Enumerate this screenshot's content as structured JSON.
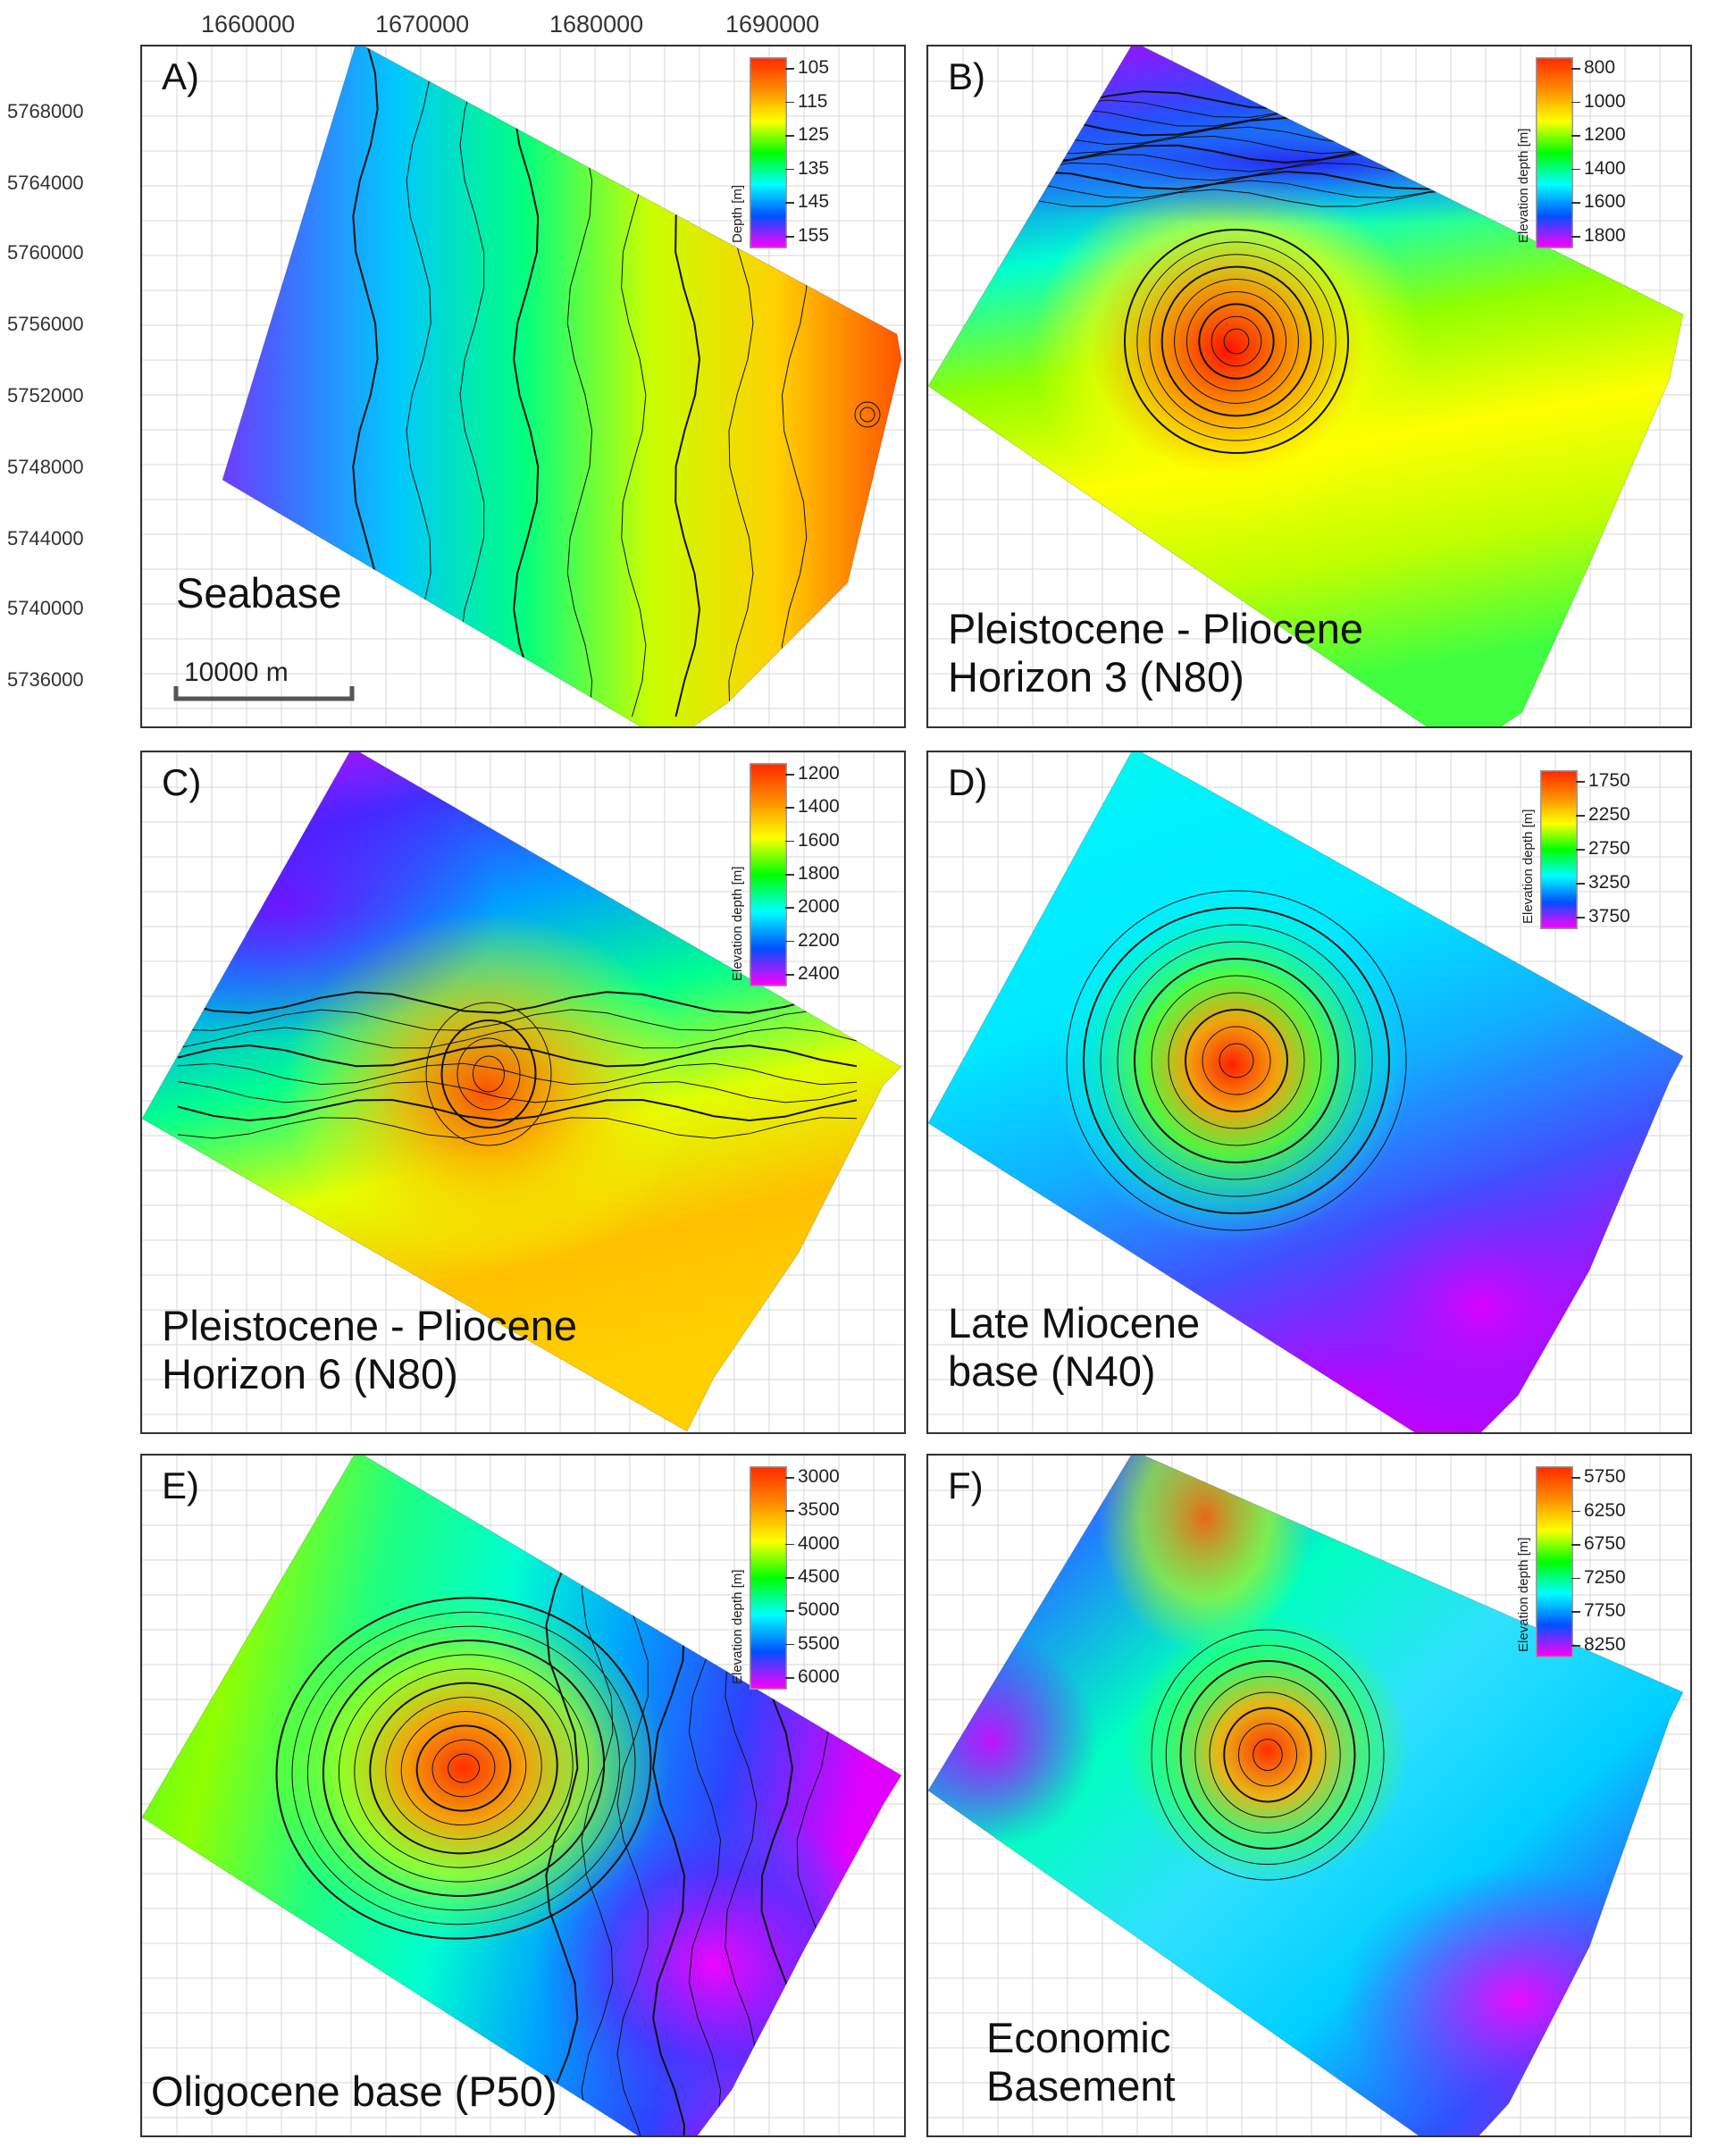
{
  "axes": {
    "x_ticks": [
      "1660000",
      "1670000",
      "1680000",
      "1690000"
    ],
    "y_ticks": [
      "5768000",
      "5764000",
      "5760000",
      "5756000",
      "5752000",
      "5748000",
      "5744000",
      "5740000",
      "5736000"
    ]
  },
  "scale_bar": {
    "label": "10000 m"
  },
  "colors": {
    "ramp": [
      "#ff2a00",
      "#ff8c00",
      "#ffff00",
      "#00ff00",
      "#00ffff",
      "#0050ff",
      "#ff00ff"
    ]
  },
  "panels": [
    {
      "id": "A",
      "label": "A)",
      "title": [
        "Seabase"
      ],
      "legend": {
        "title": "Depth [m]",
        "ticks": [
          "105",
          "115",
          "125",
          "135",
          "145",
          "155"
        ]
      },
      "peak": "east",
      "grad": [
        0.0,
        0.0
      ]
    },
    {
      "id": "B",
      "label": "B)",
      "title": [
        "Pleistocene - Pliocene",
        "Horizon 3 (N80)"
      ],
      "legend": {
        "title": "Elevation depth [m]",
        "ticks": [
          "800",
          "1000",
          "1200",
          "1400",
          "1600",
          "1800"
        ]
      },
      "peak": "centre-high",
      "grad": [
        0.0,
        0.0
      ]
    },
    {
      "id": "C",
      "label": "C)",
      "title": [
        "Pleistocene - Pliocene",
        "Horizon 6 (N80)"
      ],
      "legend": {
        "title": "Elevation depth [m]",
        "ticks": [
          "1200",
          "1400",
          "1600",
          "1800",
          "2000",
          "2200",
          "2400"
        ]
      },
      "peak": "south-high",
      "grad": [
        0.0,
        0.0
      ]
    },
    {
      "id": "D",
      "label": "D)",
      "title": [
        "Late Miocene",
        "base (N40)"
      ],
      "legend": {
        "title": "Elevation depth [m]",
        "ticks": [
          "1750",
          "2250",
          "2750",
          "3250",
          "3750"
        ]
      },
      "peak": "dome",
      "grad": [
        0.0,
        0.0
      ]
    },
    {
      "id": "E",
      "label": "E)",
      "title": [
        "Oligocene base (P50)"
      ],
      "legend": {
        "title": "Elevation depth [m]",
        "ticks": [
          "3000",
          "3500",
          "4000",
          "4500",
          "5000",
          "5500",
          "6000"
        ]
      },
      "peak": "dome-west",
      "grad": [
        0.0,
        0.0
      ]
    },
    {
      "id": "F",
      "label": "F)",
      "title": [
        "Economic",
        "Basement"
      ],
      "legend": {
        "title": "Elevation depth [m]",
        "ticks": [
          "5750",
          "6250",
          "6750",
          "7250",
          "7750",
          "8250"
        ]
      },
      "peak": "complex",
      "grad": [
        0.0,
        0.0
      ]
    }
  ]
}
